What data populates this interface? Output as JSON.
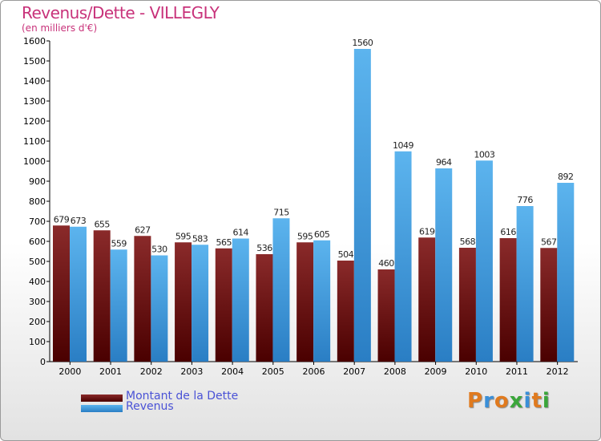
{
  "title": "Revenus/Dette - VILLEGLY",
  "subtitle": "(en milliers d'€)",
  "chart_data": {
    "type": "bar",
    "title": "Revenus/Dette - VILLEGLY",
    "subtitle": "(en milliers d'€)",
    "ylim": [
      0,
      1600
    ],
    "yticks": [
      0,
      100,
      200,
      300,
      400,
      500,
      600,
      700,
      800,
      900,
      1000,
      1100,
      1200,
      1300,
      1400,
      1500,
      1600
    ],
    "grid": false,
    "legend_position": "bottom-left",
    "categories": [
      "2000",
      "2001",
      "2002",
      "2003",
      "2004",
      "2005",
      "2006",
      "2007",
      "2008",
      "2009",
      "2010",
      "2011",
      "2012"
    ],
    "series": [
      {
        "name": "Montant de la Dette",
        "color": "#7a1212",
        "values": [
          679,
          655,
          627,
          595,
          565,
          536,
          595,
          504,
          460,
          619,
          568,
          616,
          567
        ]
      },
      {
        "name": "Revenus",
        "color": "#4aa6e8",
        "values": [
          673,
          559,
          530,
          583,
          614,
          715,
          605,
          1560,
          1049,
          964,
          1003,
          776,
          892
        ]
      }
    ]
  },
  "legend": {
    "debt_label": "Montant de la Dette",
    "revenue_label": "Revenus"
  },
  "logo": {
    "letters": [
      "P",
      "r",
      "o",
      "x",
      "i",
      "t",
      "i"
    ],
    "colors": [
      "#e07a1e",
      "#3a8fd8",
      "#e07a1e",
      "#3aa63a",
      "#3a8fd8",
      "#e07a1e",
      "#3aa63a"
    ]
  },
  "colors": {
    "title": "#c8327a",
    "legend_text": "#4a52d6",
    "debt_top": "#8a2a2a",
    "debt_bottom": "#4a0000",
    "revenue_top": "#5cb4ee",
    "revenue_bottom": "#2a7ec4"
  }
}
